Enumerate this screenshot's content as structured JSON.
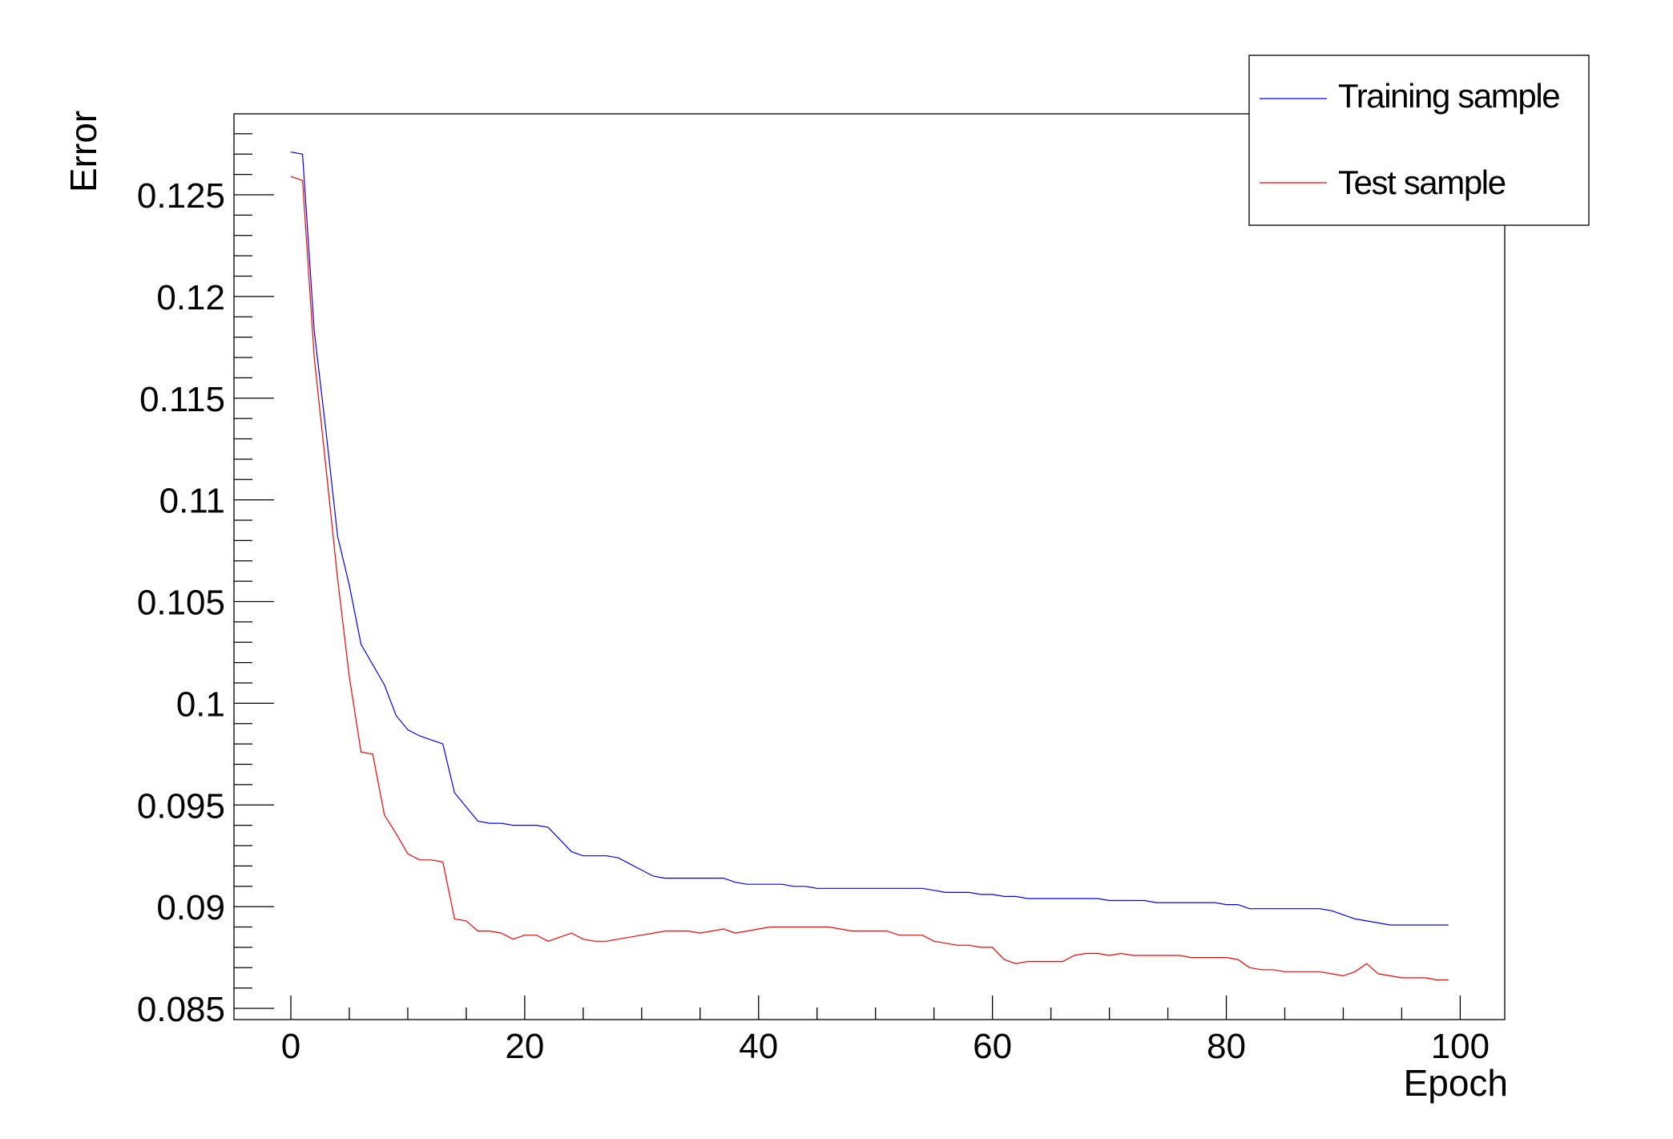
{
  "chart_data": {
    "type": "line",
    "title": "",
    "xlabel": "Epoch",
    "ylabel": "Error",
    "x_range": [
      -4.87,
      103.84
    ],
    "y_range": [
      0.08445,
      0.12899
    ],
    "x_ticks": [
      0,
      20,
      40,
      60,
      80,
      100
    ],
    "x_tick_labels": [
      "0",
      "20",
      "40",
      "60",
      "80",
      "100"
    ],
    "x_minor_step": 5,
    "y_ticks": [
      0.085,
      0.09,
      0.095,
      0.1,
      0.105,
      0.11,
      0.115,
      0.12,
      0.125
    ],
    "y_tick_labels": [
      "0.085",
      "0.09",
      "0.095",
      "0.1",
      "0.105",
      "0.11",
      "0.115",
      "0.12",
      "0.125"
    ],
    "y_minor_step": 0.001,
    "grid": false,
    "legend_position": "top-right",
    "x_start": 0,
    "x_step": 1,
    "series": [
      {
        "name": "Training sample",
        "color": "#0000ff",
        "values": [
          0.1271,
          0.127,
          0.1183,
          0.1134,
          0.1082,
          0.1058,
          0.1029,
          0.1019,
          0.1009,
          0.0994,
          0.0987,
          0.0984,
          0.0982,
          0.098,
          0.0956,
          0.0949,
          0.0942,
          0.0941,
          0.0941,
          0.094,
          0.094,
          0.094,
          0.0939,
          0.0933,
          0.0927,
          0.0925,
          0.0925,
          0.0925,
          0.0924,
          0.0921,
          0.0918,
          0.0915,
          0.0914,
          0.0914,
          0.0914,
          0.0914,
          0.0914,
          0.0914,
          0.0912,
          0.0911,
          0.0911,
          0.0911,
          0.0911,
          0.091,
          0.091,
          0.0909,
          0.0909,
          0.0909,
          0.0909,
          0.0909,
          0.0909,
          0.0909,
          0.0909,
          0.0909,
          0.0909,
          0.0908,
          0.0907,
          0.0907,
          0.0907,
          0.0906,
          0.0906,
          0.0905,
          0.0905,
          0.0904,
          0.0904,
          0.0904,
          0.0904,
          0.0904,
          0.0904,
          0.0904,
          0.0903,
          0.0903,
          0.0903,
          0.0903,
          0.0902,
          0.0902,
          0.0902,
          0.0902,
          0.0902,
          0.0902,
          0.0901,
          0.0901,
          0.0899,
          0.0899,
          0.0899,
          0.0899,
          0.0899,
          0.0899,
          0.0899,
          0.0898,
          0.0896,
          0.0894,
          0.0893,
          0.0892,
          0.0891,
          0.0891,
          0.0891,
          0.0891,
          0.0891,
          0.0891
        ]
      },
      {
        "name": "Test sample",
        "color": "#ff0000",
        "values": [
          0.1259,
          0.1257,
          0.117,
          0.1116,
          0.1061,
          0.1013,
          0.0976,
          0.0975,
          0.0945,
          0.0936,
          0.0926,
          0.0923,
          0.0923,
          0.0922,
          0.0894,
          0.0893,
          0.0888,
          0.0888,
          0.0887,
          0.0884,
          0.0886,
          0.0886,
          0.0883,
          0.0885,
          0.0887,
          0.0884,
          0.0883,
          0.0883,
          0.0884,
          0.0885,
          0.0886,
          0.0887,
          0.0888,
          0.0888,
          0.0888,
          0.0887,
          0.0888,
          0.0889,
          0.0887,
          0.0888,
          0.0889,
          0.089,
          0.089,
          0.089,
          0.089,
          0.089,
          0.089,
          0.0889,
          0.0888,
          0.0888,
          0.0888,
          0.0888,
          0.0886,
          0.0886,
          0.0886,
          0.0883,
          0.0882,
          0.0881,
          0.0881,
          0.088,
          0.088,
          0.0874,
          0.0872,
          0.0873,
          0.0873,
          0.0873,
          0.0873,
          0.0876,
          0.0877,
          0.0877,
          0.0876,
          0.0877,
          0.0876,
          0.0876,
          0.0876,
          0.0876,
          0.0876,
          0.0875,
          0.0875,
          0.0875,
          0.0875,
          0.0874,
          0.087,
          0.0869,
          0.0869,
          0.0868,
          0.0868,
          0.0868,
          0.0868,
          0.0867,
          0.0866,
          0.0868,
          0.0872,
          0.0867,
          0.0866,
          0.0865,
          0.0865,
          0.0865,
          0.0864,
          0.0864
        ]
      }
    ]
  },
  "legend": {
    "items": [
      {
        "label": "Training sample",
        "color": "#0000ff"
      },
      {
        "label": "Test sample",
        "color": "#ff0000"
      }
    ]
  },
  "colors": {
    "background": "#ffffff",
    "axis": "#000000",
    "text": "#000000"
  }
}
